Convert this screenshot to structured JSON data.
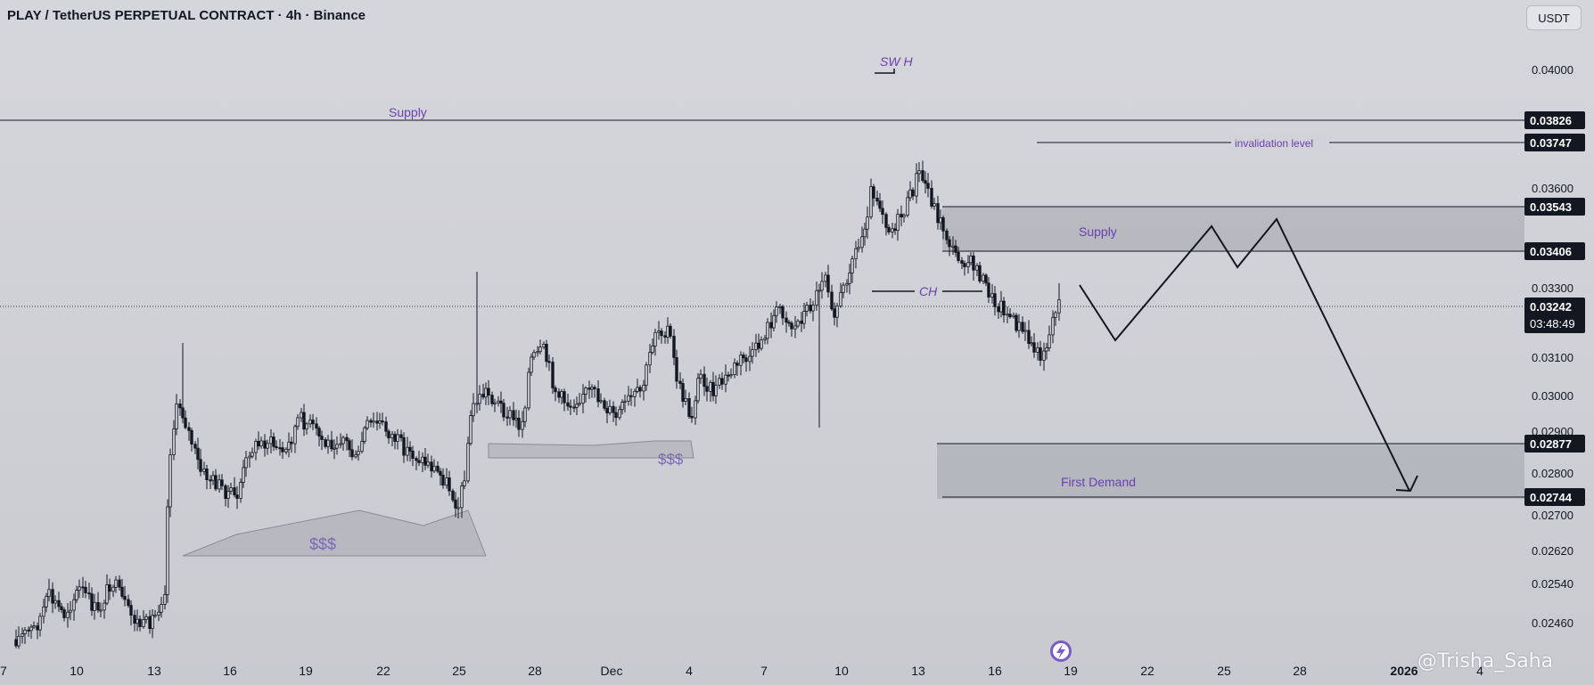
{
  "header": {
    "title": "PLAY / TetherUS PERPETUAL CONTRACT · 4h · Binance",
    "currency_button": "USDT"
  },
  "watermark": "@Trisha_Saha",
  "colors": {
    "candle": "#131722",
    "annotation_purple": "#6a3fb0",
    "zone_fill": "#8a8c96",
    "background": "#d2d3d9"
  },
  "chart_data": {
    "type": "candlestick",
    "symbol": "PLAY / TetherUS PERPETUAL CONTRACT",
    "timeframe": "4h",
    "exchange": "Binance",
    "price_axis": {
      "unit": "USDT",
      "tick_labels": [
        "0.04000",
        "0.03600",
        "0.03300",
        "0.03100",
        "0.03000",
        "0.02900",
        "0.02800",
        "0.02700",
        "0.02620",
        "0.02540",
        "0.02460"
      ],
      "highlighted_labels": [
        "0.03826",
        "0.03747",
        "0.03543",
        "0.03406",
        "0.03242",
        "0.02877",
        "0.02744"
      ],
      "last_price": "0.03242",
      "countdown": "03:48:49"
    },
    "time_axis": {
      "tick_labels": [
        "7",
        "10",
        "13",
        "16",
        "19",
        "22",
        "25",
        "28",
        "Dec",
        "4",
        "7",
        "10",
        "13",
        "16",
        "19",
        "22",
        "25",
        "28",
        "2026",
        "4"
      ]
    },
    "annotations": {
      "supply_top_label": "Supply",
      "supply_top_price": 0.03826,
      "swing_high_label": "SW H",
      "invalidation_label": "invalidation level",
      "invalidation_price": 0.03747,
      "supply_zone_label": "Supply",
      "supply_zone": [
        0.03406,
        0.03543
      ],
      "choch_label": "CH",
      "first_demand_label": "First Demand",
      "demand_zone": [
        0.02744,
        0.02877
      ],
      "liquidity_label_1": "$$$",
      "liquidity_label_2": "$$$"
    }
  }
}
